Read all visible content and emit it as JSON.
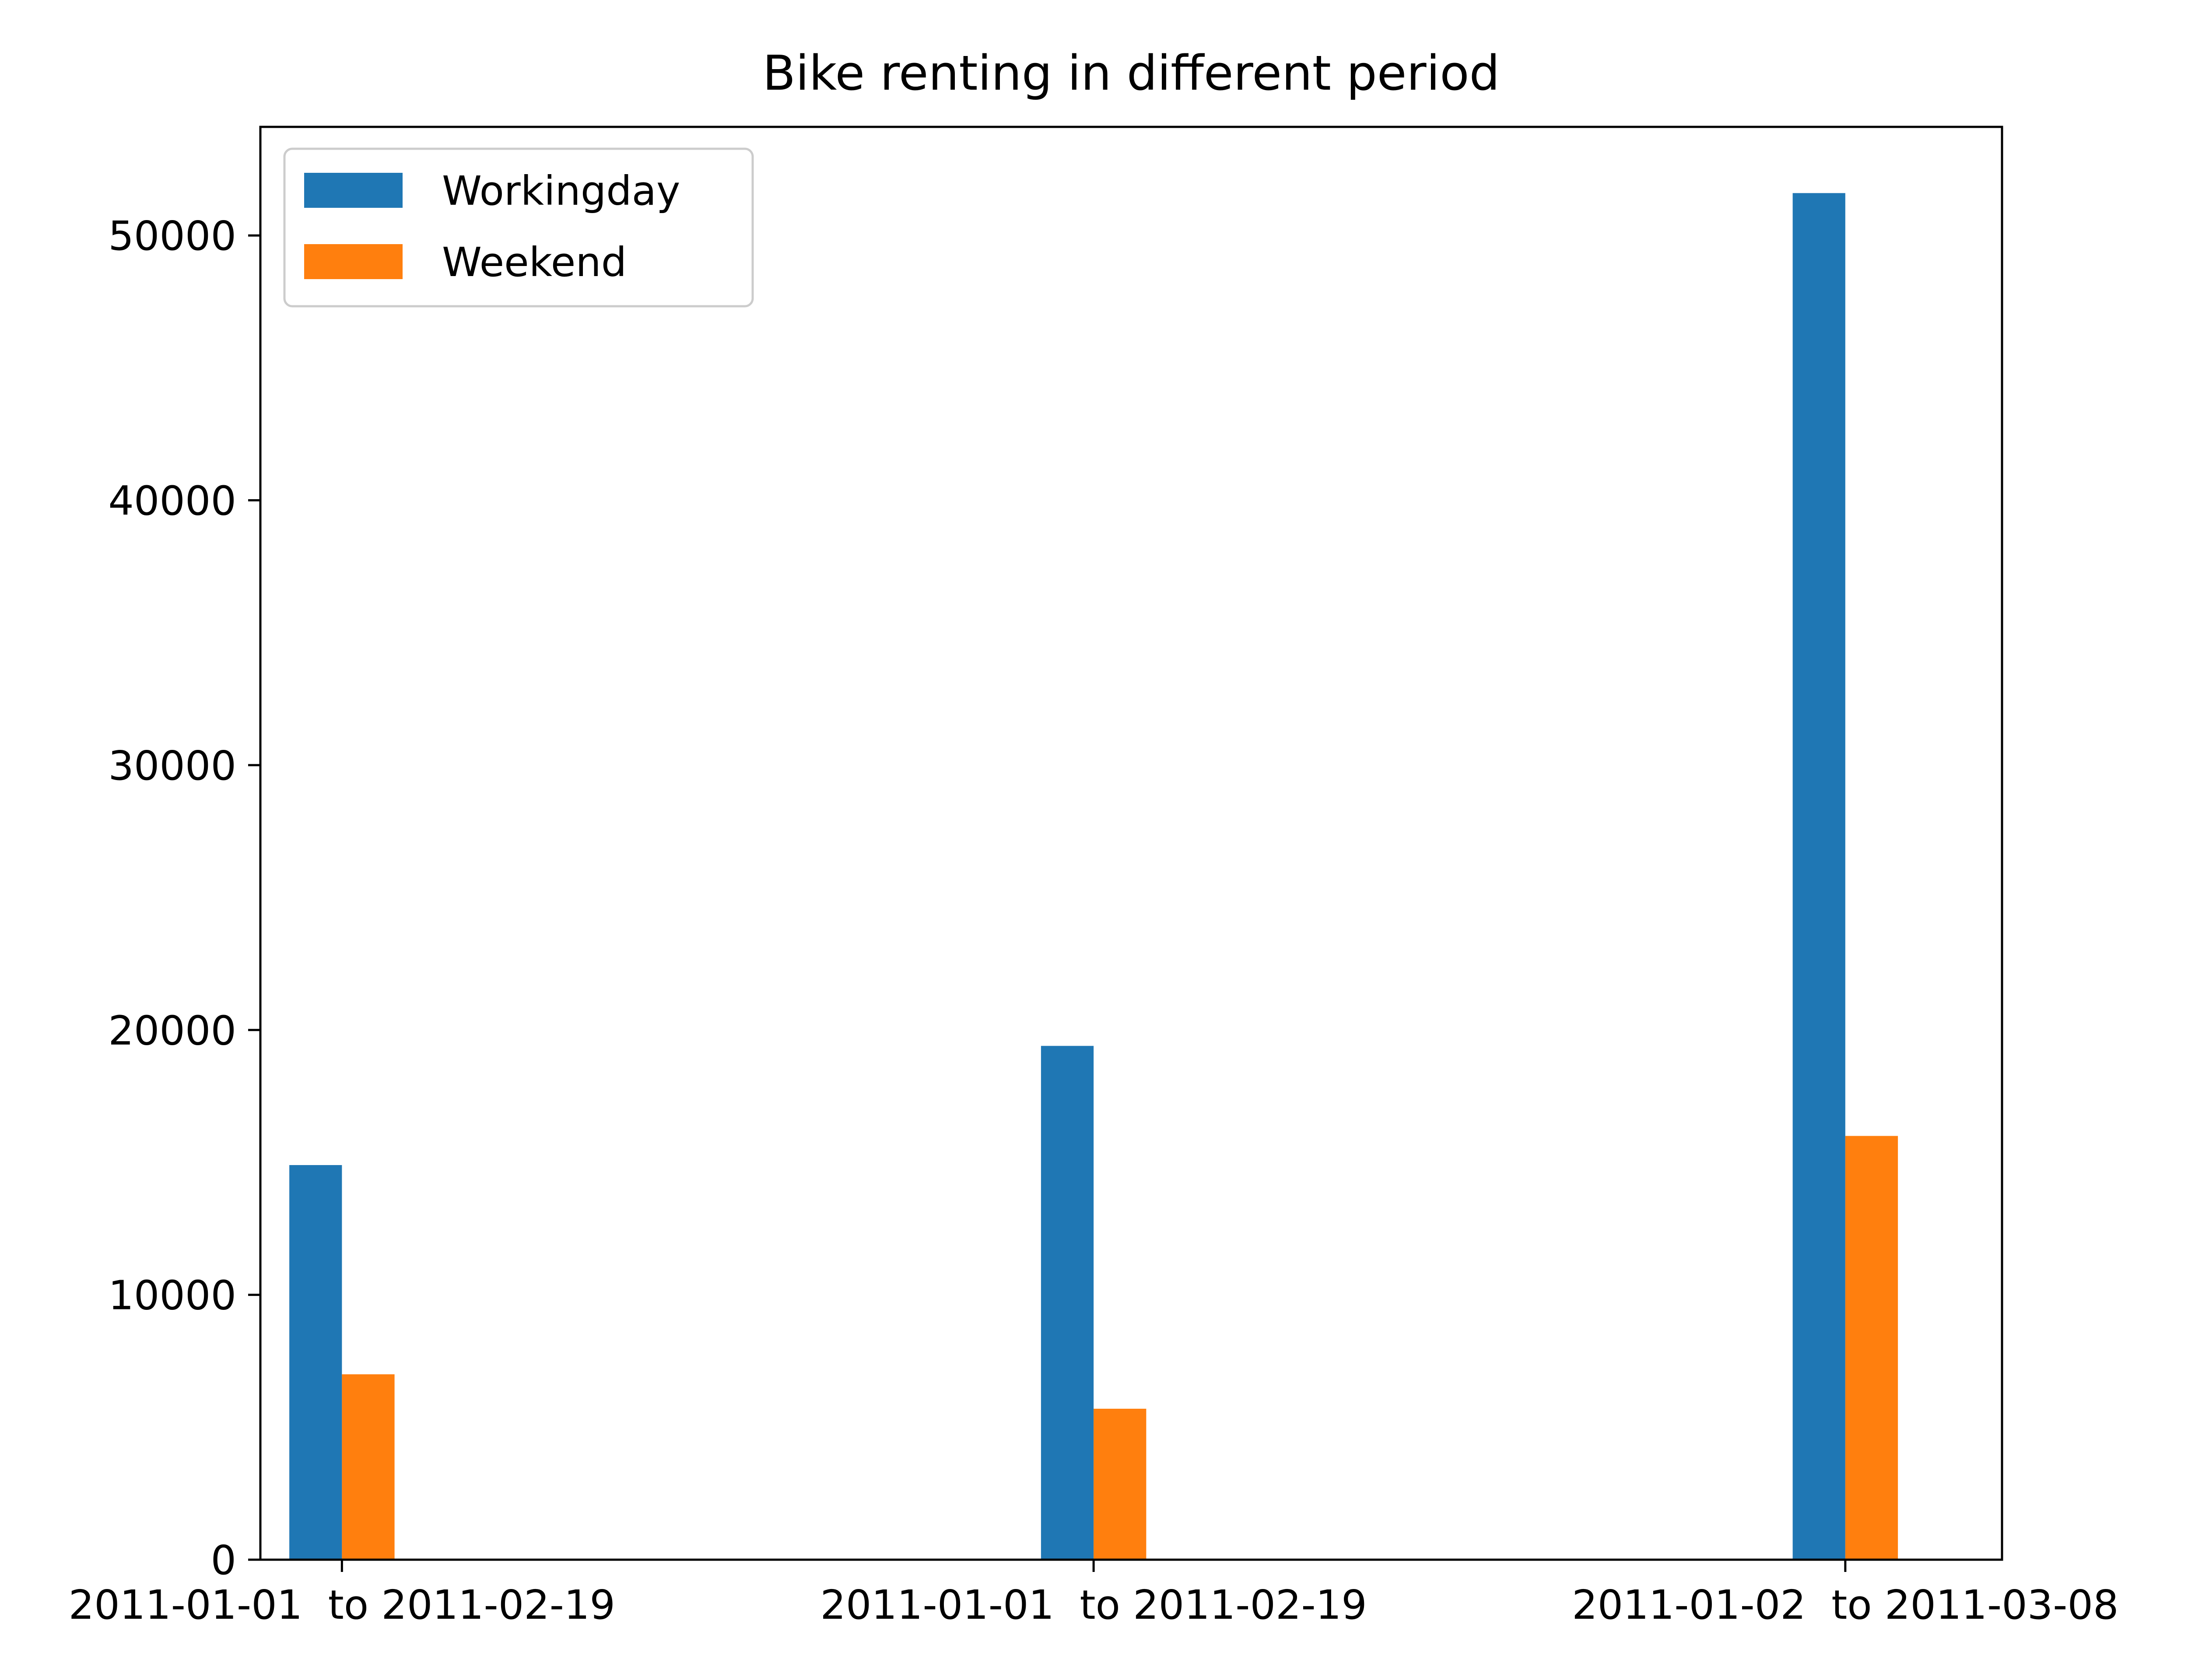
{
  "chart_data": {
    "type": "bar",
    "title": "Bike renting in different period",
    "xlabel": "",
    "ylabel": "",
    "categories": [
      "2011-01-01  to 2011-02-19",
      "2011-01-01  to 2011-02-19",
      "2011-01-02  to 2011-03-08"
    ],
    "series": [
      {
        "name": "Workingday",
        "color": "#1f77b4",
        "values": [
          14900,
          19400,
          51600
        ]
      },
      {
        "name": "Weekend",
        "color": "#ff7f0e",
        "values": [
          7000,
          5700,
          16000
        ]
      }
    ],
    "ylim": [
      0,
      54100
    ],
    "yticks": [
      0,
      10000,
      20000,
      30000,
      40000,
      50000
    ],
    "ytick_labels": [
      "0",
      "10000",
      "20000",
      "30000",
      "40000",
      "50000"
    ],
    "grid": false,
    "legend_position": "top-left"
  }
}
